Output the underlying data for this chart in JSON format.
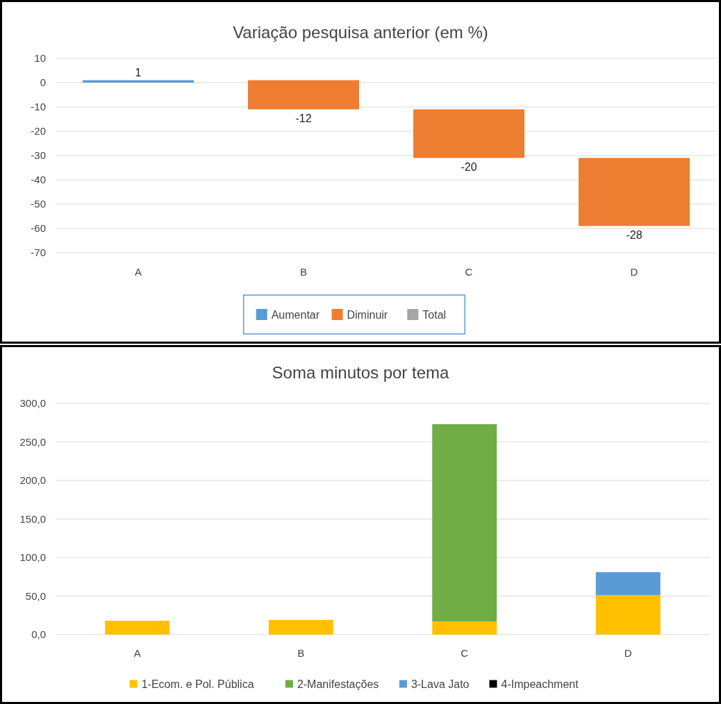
{
  "chart_data": [
    {
      "type": "bar",
      "title": "Variação pesquisa anterior (em %)",
      "categories": [
        "A",
        "B",
        "C",
        "D"
      ],
      "series": [
        {
          "name": "Aumentar",
          "color": "#5b9bd5",
          "values": [
            1,
            null,
            null,
            null
          ],
          "base": [
            0,
            null,
            null,
            null
          ]
        },
        {
          "name": "Diminuir",
          "color": "#ed7d31",
          "values": [
            null,
            -12,
            -20,
            -28
          ],
          "base": [
            null,
            1,
            -11,
            -31
          ]
        },
        {
          "name": "Total",
          "color": "#a5a5a5",
          "values": [
            null,
            null,
            null,
            null
          ]
        }
      ],
      "ylim": [
        -70,
        10
      ],
      "yticks": [
        -70,
        -60,
        -50,
        -40,
        -30,
        -20,
        -10,
        0,
        10
      ],
      "grid": "y",
      "data_labels": true,
      "legend": "bottom"
    },
    {
      "type": "bar",
      "title": "Soma minutos por tema",
      "categories": [
        "A",
        "B",
        "C",
        "D"
      ],
      "stacked": true,
      "series": [
        {
          "name": "1-Ecom. e Pol. Pública",
          "color": "#ffc000",
          "values": [
            18,
            19,
            17,
            51
          ]
        },
        {
          "name": "2-Manifestações",
          "color": "#70ad47",
          "values": [
            null,
            null,
            256,
            null
          ]
        },
        {
          "name": "3-Lava Jato",
          "color": "#5b9bd5",
          "values": [
            null,
            null,
            null,
            30
          ]
        },
        {
          "name": "4-Impeachment",
          "color": "#000000",
          "values": [
            null,
            null,
            null,
            null
          ]
        }
      ],
      "ylim": [
        0,
        300
      ],
      "yticks": [
        {
          "value": 0,
          "label": "0,0"
        },
        {
          "value": 50,
          "label": "50,0"
        },
        {
          "value": 100,
          "label": "100,0"
        },
        {
          "value": 150,
          "label": "150,0"
        },
        {
          "value": 200,
          "label": "200,0"
        },
        {
          "value": 250,
          "label": "250,0"
        },
        {
          "value": 300,
          "label": "300,0"
        }
      ],
      "grid": "y",
      "legend": "bottom"
    }
  ]
}
